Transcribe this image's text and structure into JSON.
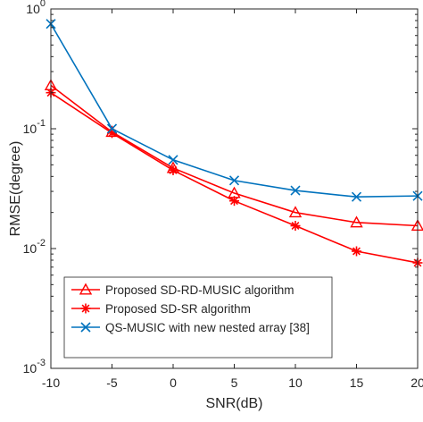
{
  "chart_data": {
    "type": "line",
    "title": "",
    "xlabel": "SNR(dB)",
    "ylabel": "RMSE(degree)",
    "x": [
      -10,
      -5,
      0,
      5,
      10,
      15,
      20
    ],
    "xlim": [
      -10,
      20
    ],
    "ylim": [
      0.001,
      1
    ],
    "yscale": "log",
    "grid": false,
    "legend_position": "lower-left",
    "x_ticks": [
      "-10",
      "-5",
      "0",
      "5",
      "10",
      "15",
      "20"
    ],
    "y_ticks": [
      {
        "value": 1,
        "base": "10",
        "exp": "0"
      },
      {
        "value": 0.1,
        "base": "10",
        "exp": "-1"
      },
      {
        "value": 0.01,
        "base": "10",
        "exp": "-2"
      },
      {
        "value": 0.001,
        "base": "10",
        "exp": "-3"
      }
    ],
    "series": [
      {
        "name": "Proposed SD-RD-MUSIC algorithm",
        "color": "#ff0000",
        "marker": "triangle",
        "values": [
          0.23,
          0.094,
          0.047,
          0.029,
          0.02,
          0.0165,
          0.0155
        ]
      },
      {
        "name": "Proposed SD-SR algorithm",
        "color": "#ff0000",
        "marker": "asterisk",
        "values": [
          0.2,
          0.092,
          0.045,
          0.025,
          0.0155,
          0.0095,
          0.0076
        ]
      },
      {
        "name": "QS-MUSIC with new nested array [38]",
        "color": "#0072bd",
        "marker": "x",
        "values": [
          0.75,
          0.1,
          0.055,
          0.037,
          0.0305,
          0.027,
          0.0275
        ]
      }
    ]
  }
}
